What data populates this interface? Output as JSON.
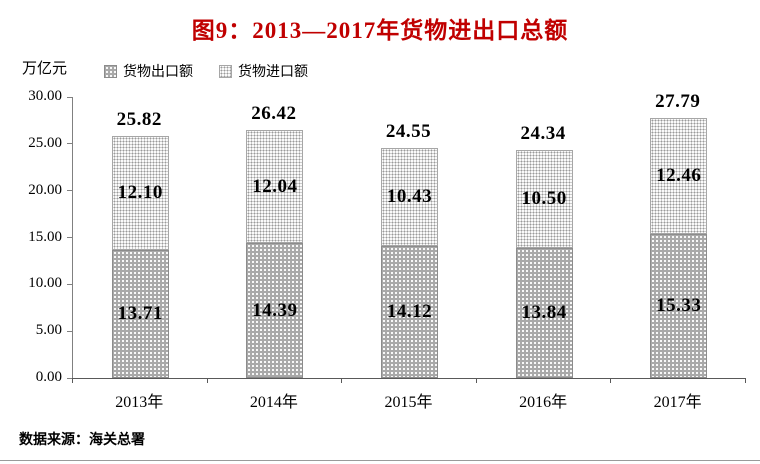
{
  "title": {
    "text": "图9：2013—2017年货物进出口总额",
    "color": "#c00000"
  },
  "axis_unit_label": "万亿元",
  "legend": {
    "items": [
      {
        "label": "货物出口额",
        "swatch": "export"
      },
      {
        "label": "货物进口额",
        "swatch": "import"
      }
    ]
  },
  "source_note": "数据来源：海关总署",
  "chart_data": {
    "type": "bar",
    "stacked": true,
    "title": "图9：2013—2017年货物进出口总额",
    "categories": [
      "2013年",
      "2014年",
      "2015年",
      "2016年",
      "2017年"
    ],
    "series": [
      {
        "name": "货物出口额",
        "key": "export",
        "values": [
          13.71,
          14.39,
          14.12,
          13.84,
          15.33
        ]
      },
      {
        "name": "货物进口额",
        "key": "import",
        "values": [
          12.1,
          12.04,
          10.43,
          10.5,
          12.46
        ]
      }
    ],
    "totals": [
      25.82,
      26.42,
      24.55,
      24.34,
      27.79
    ],
    "xlabel": "",
    "ylabel": "万亿元",
    "ylim": [
      0,
      30
    ],
    "ytick_step": 5,
    "ytick_labels": [
      "0.00",
      "5.00",
      "10.00",
      "15.00",
      "20.00",
      "25.00",
      "30.00"
    ],
    "grid": false,
    "legend_position": "top-left",
    "value_labels": "inside-and-total-above"
  },
  "colors": {
    "title": "#c00000",
    "export_fill": "#a9a9a9",
    "import_fill": "#ffffff",
    "axis": "#808080",
    "text": "#000000"
  }
}
